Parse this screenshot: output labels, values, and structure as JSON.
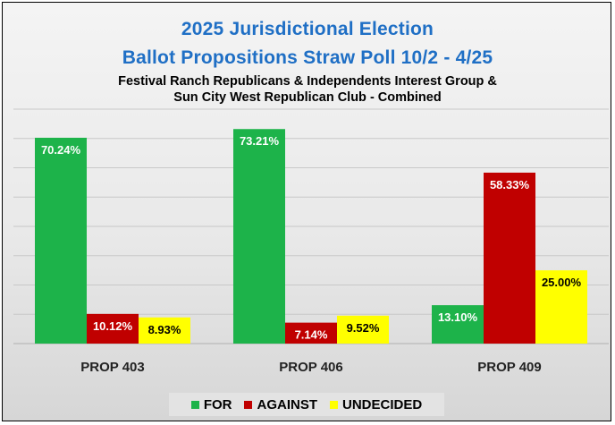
{
  "chart_data": {
    "type": "bar",
    "title": "2025 Jurisdictional Election",
    "subtitle_main": "Ballot Propositions Straw Poll 10/2 - 4/25",
    "subtitle_line1": "Festival Ranch Republicans & Independents Interest Group &",
    "subtitle_line2": "Sun City West Republican Club - Combined",
    "categories": [
      "PROP 403",
      "PROP 406",
      "PROP 409"
    ],
    "series": [
      {
        "name": "FOR",
        "color": "#1db34a",
        "values": [
          70.24,
          73.21,
          13.1
        ],
        "labels": [
          "70.24%",
          "73.21%",
          "13.10%"
        ]
      },
      {
        "name": "AGAINST",
        "color": "#c00000",
        "values": [
          10.12,
          7.14,
          58.33
        ],
        "labels": [
          "10.12%",
          "7.14%",
          "58.33%"
        ]
      },
      {
        "name": "UNDECIDED",
        "color": "#ffff00",
        "values": [
          8.93,
          9.52,
          25.0
        ],
        "labels": [
          "8.93%",
          "9.52%",
          "25.00%"
        ]
      }
    ],
    "ylim": [
      0,
      80
    ],
    "grid": true,
    "legend_position": "bottom"
  }
}
